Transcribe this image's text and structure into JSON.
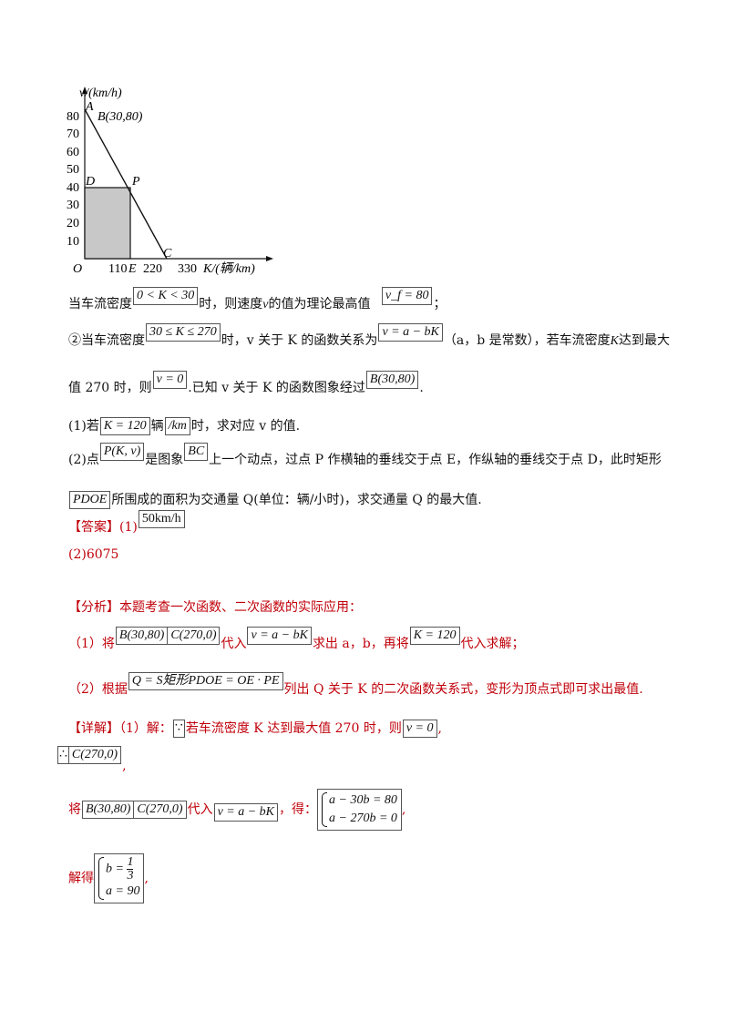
{
  "chart": {
    "y_axis_label": "v/(km/h)",
    "x_axis_label": "K/(辆/km)",
    "origin_label": "O",
    "y_ticks": [
      "80",
      "70",
      "60",
      "50",
      "40",
      "30",
      "20",
      "10"
    ],
    "x_ticks": [
      "110",
      "220",
      "330"
    ],
    "point_A": "A",
    "point_B": "B(30,80)",
    "point_D": "D",
    "point_P": "P",
    "point_E": "E",
    "point_C": "C"
  },
  "p1": {
    "t1": "当车流密度",
    "f1": "0 < K < 30",
    "t2": "时，则速度",
    "t3": "v",
    "t4": "的值为理论最高值",
    "f2": "v_f = 80",
    "t5": "；"
  },
  "p2": {
    "t1": "②当车流密度",
    "f1": "30 ≤ K ≤ 270",
    "t2": "时，",
    "t3": "v 关于 K 的函数关系为",
    "f2": "v = a − bK",
    "t4": "（a，b 是常数），若车流密度",
    "t5": "K",
    "t6": "达到最大"
  },
  "p3": {
    "t1": "值 270 时，则",
    "f1": "v = 0",
    "t2": ".已知 v 关于 K 的函数图象经过",
    "f2": "B(30,80)",
    "t3": "."
  },
  "q1": {
    "t1": "(1)若",
    "f1": "K = 120",
    "t2": "辆",
    "f2": "/km",
    "t3": "时，求对应 v 的值."
  },
  "q2": {
    "t1": "(2)点",
    "f1": "P(K, v)",
    "t2": "是图象",
    "f2": "BC",
    "t3": "上一个动点，过点 P 作横轴的垂线交于点 E，作纵轴的垂线交于点 D，此时矩形"
  },
  "q2b": {
    "f1": "PDOE",
    "t1": "所围成的面积为交通量 Q(单位：辆/小时)，求交通量 Q 的最大值."
  },
  "answer": {
    "t1": "【答案】(1)",
    "f1": "50km/h",
    "t2": "(2)6075"
  },
  "analysis": {
    "t1": "【分析】本题考查一次函数、二次函数的实际应用：",
    "l1a": "（1）将",
    "l1f1": "B(30,80)",
    "l1f2": "C(270,0)",
    "l1b": "代入",
    "l1f3": "v = a − bK",
    "l1c": "求出 a，b，再将",
    "l1f4": "K = 120",
    "l1d": "代入求解；",
    "l2a": "（2）根据",
    "l2f1": "Q = S矩形PDOE = OE · PE",
    "l2b": "列出 Q 关于 K 的二次函数关系式，变形为顶点式即可求出最值."
  },
  "detail": {
    "l1a": "【详解】（1）解：",
    "l1s": "∵",
    "l1b": "若车流密度 K 达到最大值 270 时，则",
    "l1f": "v = 0",
    "l1c": ",",
    "l2s": "∴",
    "l2f": "C(270,0)",
    "l2c": ",",
    "l3a": "将",
    "l3f1": "B(30,80)",
    "l3f2": "C(270,0)",
    "l3b": "代入",
    "l3f3": "v = a − bK",
    "l3c": "，得：",
    "sys1a": "a − 30b = 80",
    "sys1b": "a − 270b = 0",
    "l3d": ",",
    "l4a": "解得",
    "sys2a_pre": "b =",
    "sys2a_num": "1",
    "sys2a_den": "3",
    "sys2b": "a = 90",
    "l4b": ","
  },
  "colors": {
    "accent_red": "#c0000a",
    "shade": "#c8c8c8"
  }
}
